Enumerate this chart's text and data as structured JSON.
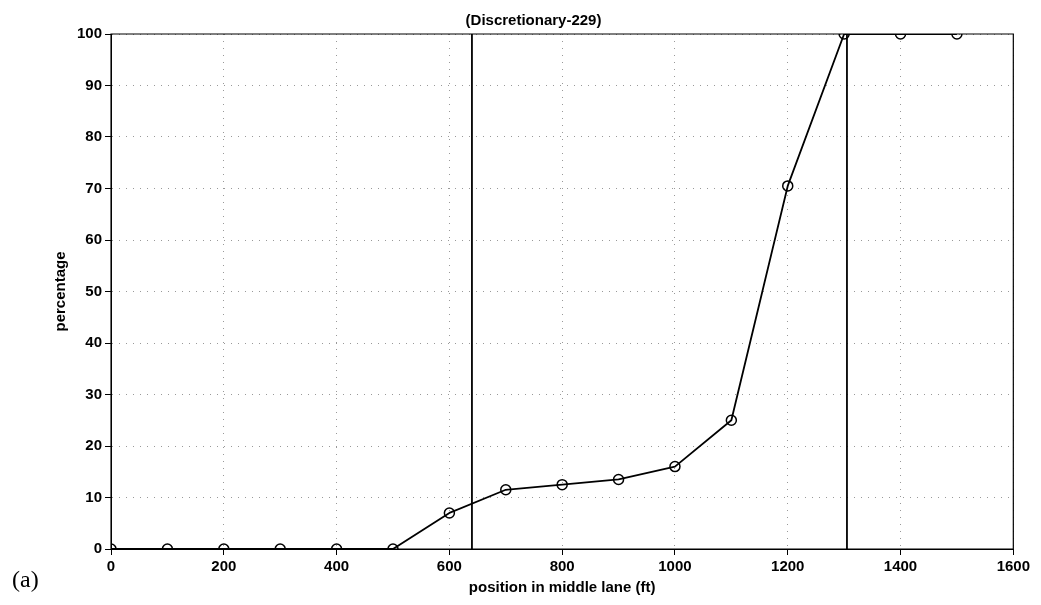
{
  "chart_data": {
    "type": "line",
    "title": "(Discretionary-229)",
    "xlabel": "position in middle lane (ft)",
    "ylabel": "percentage",
    "annotations": [
      "(a)"
    ],
    "x": [
      0,
      100,
      200,
      300,
      400,
      500,
      600,
      700,
      800,
      900,
      1000,
      1100,
      1200,
      1300,
      1400,
      1500
    ],
    "series": [
      {
        "color": "#000000",
        "values": [
          0,
          0,
          0,
          0,
          0,
          0,
          7,
          11.5,
          12.5,
          13.5,
          16,
          25,
          70.5,
          100,
          100,
          100
        ]
      }
    ],
    "xlim": [
      0,
      1600
    ],
    "xticks": [
      0,
      200,
      400,
      600,
      800,
      1000,
      1200,
      1400,
      1600
    ],
    "ylim": [
      0,
      100
    ],
    "yticks": [
      0,
      10,
      20,
      30,
      40,
      50,
      60,
      70,
      80,
      90,
      100
    ],
    "ref_lines": [
      {
        "axis": "x",
        "value": 640,
        "color": "#000000"
      },
      {
        "axis": "x",
        "value": 1305,
        "color": "#000000"
      }
    ],
    "grid": true,
    "marker": "circle",
    "line_style": "solid",
    "legend": false
  }
}
